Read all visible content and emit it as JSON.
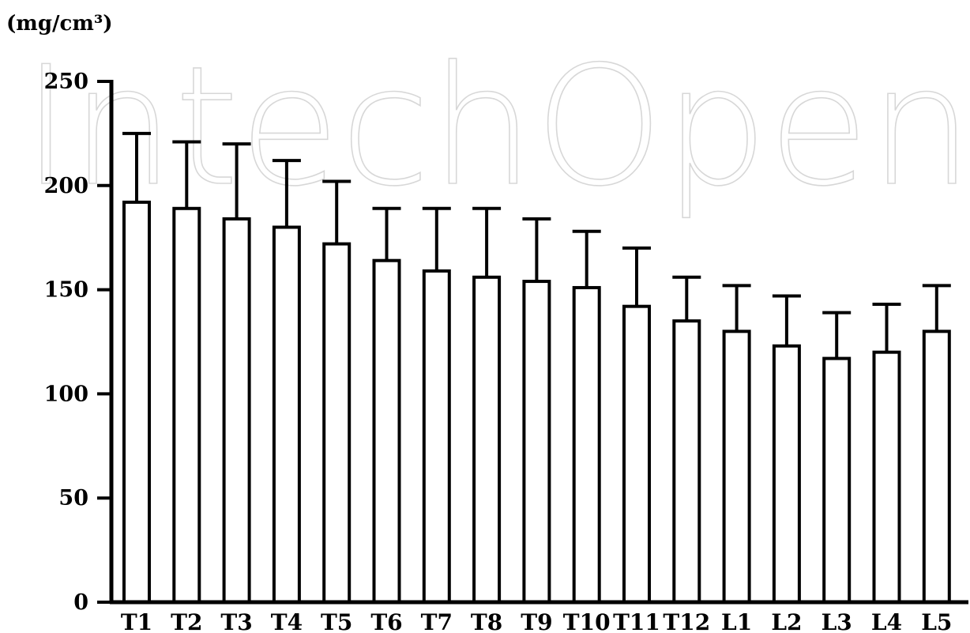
{
  "watermark": "IntechOpen",
  "chart_data": {
    "type": "bar",
    "ylabel": "(mg/cm³)",
    "xlabel": "",
    "title": "",
    "ylim": [
      0,
      250
    ],
    "yticks": [
      "0",
      "50",
      "100",
      "150",
      "200",
      "250"
    ],
    "grid": false,
    "legend": "none",
    "categories": [
      "T1",
      "T2",
      "T3",
      "T4",
      "T5",
      "T6",
      "T7",
      "T8",
      "T9",
      "T10",
      "T11",
      "T12",
      "L1",
      "L2",
      "L3",
      "L4",
      "L5"
    ],
    "series": [
      {
        "values": [
          192,
          189,
          184,
          180,
          172,
          164,
          159,
          156,
          154,
          151,
          142,
          135,
          130,
          123,
          117,
          120,
          130
        ],
        "error_plus": [
          33,
          32,
          36,
          32,
          30,
          25,
          30,
          33,
          30,
          27,
          28,
          21,
          22,
          24,
          22,
          23,
          22
        ]
      }
    ],
    "colors": {
      "bar_fill": "#ffffff",
      "bar_stroke": "#000000",
      "axis": "#000000",
      "watermark": "#d7d7d7"
    }
  }
}
